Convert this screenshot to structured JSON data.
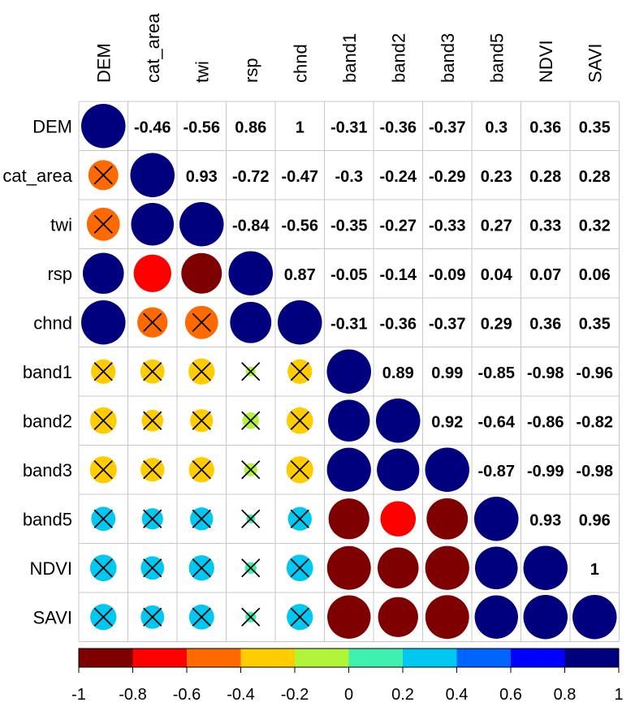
{
  "chart_data": {
    "type": "heatmap",
    "variables": [
      "DEM",
      "cat_area",
      "twi",
      "rsp",
      "chnd",
      "band1",
      "band2",
      "band3",
      "band5",
      "NDVI",
      "SAVI"
    ],
    "matrix": [
      [
        1,
        -0.46,
        -0.56,
        0.86,
        1,
        -0.31,
        -0.36,
        -0.37,
        0.3,
        0.36,
        0.35
      ],
      [
        -0.46,
        1,
        0.93,
        -0.72,
        -0.47,
        -0.3,
        -0.24,
        -0.29,
        0.23,
        0.28,
        0.28
      ],
      [
        -0.56,
        0.93,
        1,
        -0.84,
        -0.56,
        -0.35,
        -0.27,
        -0.33,
        0.27,
        0.33,
        0.32
      ],
      [
        0.86,
        -0.72,
        -0.84,
        1,
        0.87,
        -0.05,
        -0.14,
        -0.09,
        0.04,
        0.07,
        0.06
      ],
      [
        1,
        -0.47,
        -0.56,
        0.87,
        1,
        -0.31,
        -0.36,
        -0.37,
        0.29,
        0.36,
        0.35
      ],
      [
        -0.31,
        -0.3,
        -0.35,
        -0.05,
        -0.31,
        1,
        0.89,
        0.99,
        -0.85,
        -0.98,
        -0.96
      ],
      [
        -0.36,
        -0.24,
        -0.27,
        -0.14,
        -0.36,
        0.89,
        1,
        0.92,
        -0.64,
        -0.86,
        -0.82
      ],
      [
        -0.37,
        -0.29,
        -0.33,
        -0.09,
        -0.37,
        0.99,
        0.92,
        1,
        -0.87,
        -0.99,
        -0.98
      ],
      [
        0.3,
        0.23,
        0.27,
        0.04,
        0.29,
        -0.85,
        -0.64,
        -0.87,
        1,
        0.93,
        0.96
      ],
      [
        0.36,
        0.28,
        0.33,
        0.07,
        0.36,
        -0.98,
        -0.86,
        -0.99,
        0.93,
        1,
        1
      ],
      [
        0.35,
        0.28,
        0.32,
        0.06,
        0.35,
        -0.96,
        -0.82,
        -0.98,
        0.96,
        1,
        1
      ]
    ],
    "upper_triangle": "numbers",
    "lower_triangle": "circles",
    "lower_insignificant_marked": [
      [
        false,
        false,
        false,
        false,
        false,
        false,
        false,
        false,
        false,
        false,
        false
      ],
      [
        true,
        false,
        false,
        false,
        false,
        false,
        false,
        false,
        false,
        false,
        false
      ],
      [
        true,
        false,
        false,
        false,
        false,
        false,
        false,
        false,
        false,
        false,
        false
      ],
      [
        false,
        false,
        false,
        false,
        false,
        false,
        false,
        false,
        false,
        false,
        false
      ],
      [
        false,
        true,
        true,
        false,
        false,
        false,
        false,
        false,
        false,
        false,
        false
      ],
      [
        true,
        true,
        true,
        true,
        true,
        false,
        false,
        false,
        false,
        false,
        false
      ],
      [
        true,
        true,
        true,
        true,
        true,
        false,
        false,
        false,
        false,
        false,
        false
      ],
      [
        true,
        true,
        true,
        true,
        true,
        false,
        false,
        false,
        false,
        false,
        false
      ],
      [
        true,
        true,
        true,
        true,
        true,
        false,
        false,
        false,
        false,
        false,
        false
      ],
      [
        true,
        true,
        true,
        true,
        true,
        false,
        false,
        false,
        false,
        false,
        false
      ],
      [
        true,
        true,
        true,
        true,
        true,
        false,
        false,
        false,
        false,
        false,
        false
      ]
    ],
    "colorbar": {
      "range": [
        -1,
        1
      ],
      "colors": [
        "#7f0000",
        "#ff0000",
        "#ff6a00",
        "#ffcc00",
        "#b0f53a",
        "#40f0b0",
        "#00c8f0",
        "#0064ff",
        "#0000ff",
        "#00007f"
      ],
      "tick_labels": [
        "-1",
        "-0.8",
        "-0.6",
        "-0.4",
        "-0.2",
        "0",
        "0.2",
        "0.4",
        "0.6",
        "0.8",
        "1"
      ]
    },
    "grid": true,
    "legend_position": "bottom"
  }
}
